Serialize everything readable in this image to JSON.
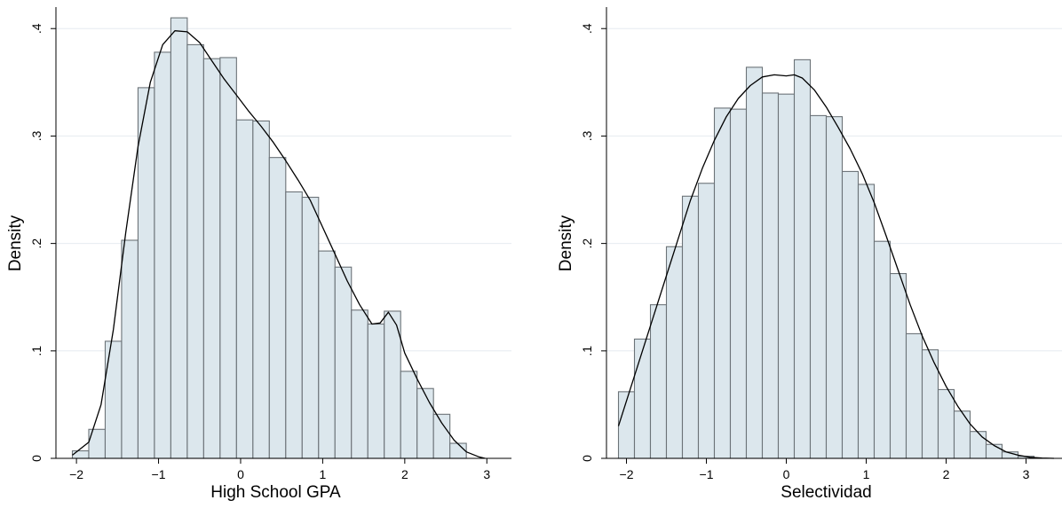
{
  "chart_data": [
    {
      "type": "bar",
      "variant": "histogram-with-density",
      "xlabel": "High School GPA",
      "ylabel": "Density",
      "xlim": [
        -2.25,
        3.3
      ],
      "ylim": [
        0,
        0.42
      ],
      "x_ticks": [
        {
          "value": -2,
          "label": "−2"
        },
        {
          "value": -1,
          "label": "−1"
        },
        {
          "value": 0,
          "label": "0"
        },
        {
          "value": 1,
          "label": "1"
        },
        {
          "value": 2,
          "label": "2"
        },
        {
          "value": 3,
          "label": "3"
        }
      ],
      "y_ticks": [
        {
          "value": 0,
          "label": "0"
        },
        {
          "value": 0.1,
          "label": ".1"
        },
        {
          "value": 0.2,
          "label": ".2"
        },
        {
          "value": 0.3,
          "label": ".3"
        },
        {
          "value": 0.4,
          "label": ".4"
        }
      ],
      "grid": true,
      "bin_start": -2.05,
      "bin_width": 0.2,
      "values": [
        0.007,
        0.027,
        0.109,
        0.203,
        0.345,
        0.378,
        0.41,
        0.385,
        0.372,
        0.373,
        0.315,
        0.314,
        0.28,
        0.248,
        0.243,
        0.193,
        0.178,
        0.138,
        0.125,
        0.137,
        0.081,
        0.065,
        0.041,
        0.014
      ],
      "density_curve": [
        [
          -2.05,
          0.003
        ],
        [
          -1.85,
          0.015
        ],
        [
          -1.7,
          0.05
        ],
        [
          -1.55,
          0.12
        ],
        [
          -1.4,
          0.21
        ],
        [
          -1.25,
          0.29
        ],
        [
          -1.1,
          0.35
        ],
        [
          -0.95,
          0.385
        ],
        [
          -0.8,
          0.398
        ],
        [
          -0.65,
          0.397
        ],
        [
          -0.5,
          0.387
        ],
        [
          -0.35,
          0.37
        ],
        [
          -0.2,
          0.353
        ],
        [
          -0.05,
          0.338
        ],
        [
          0.1,
          0.323
        ],
        [
          0.25,
          0.309
        ],
        [
          0.4,
          0.294
        ],
        [
          0.55,
          0.277
        ],
        [
          0.7,
          0.259
        ],
        [
          0.85,
          0.24
        ],
        [
          1.0,
          0.215
        ],
        [
          1.15,
          0.19
        ],
        [
          1.3,
          0.165
        ],
        [
          1.45,
          0.143
        ],
        [
          1.6,
          0.125
        ],
        [
          1.7,
          0.126
        ],
        [
          1.8,
          0.136
        ],
        [
          1.9,
          0.124
        ],
        [
          2.0,
          0.098
        ],
        [
          2.15,
          0.074
        ],
        [
          2.3,
          0.052
        ],
        [
          2.45,
          0.033
        ],
        [
          2.6,
          0.017
        ],
        [
          2.75,
          0.006
        ],
        [
          2.9,
          0.0015
        ],
        [
          2.98,
          0.0
        ]
      ]
    },
    {
      "type": "bar",
      "variant": "histogram-with-density",
      "xlabel": "Selectividad",
      "ylabel": "Density",
      "xlim": [
        -2.25,
        3.45
      ],
      "ylim": [
        0,
        0.42
      ],
      "x_ticks": [
        {
          "value": -2,
          "label": "−2"
        },
        {
          "value": -1,
          "label": "−1"
        },
        {
          "value": 0,
          "label": "0"
        },
        {
          "value": 1,
          "label": "1"
        },
        {
          "value": 2,
          "label": "2"
        },
        {
          "value": 3,
          "label": "3"
        }
      ],
      "y_ticks": [
        {
          "value": 0,
          "label": "0"
        },
        {
          "value": 0.1,
          "label": ".1"
        },
        {
          "value": 0.2,
          "label": ".2"
        },
        {
          "value": 0.3,
          "label": ".3"
        },
        {
          "value": 0.4,
          "label": ".4"
        }
      ],
      "grid": true,
      "bin_start": -2.1,
      "bin_width": 0.2,
      "values": [
        0.062,
        0.111,
        0.143,
        0.197,
        0.244,
        0.256,
        0.326,
        0.325,
        0.364,
        0.34,
        0.339,
        0.371,
        0.319,
        0.318,
        0.267,
        0.255,
        0.202,
        0.172,
        0.116,
        0.101,
        0.064,
        0.044,
        0.025,
        0.013,
        0.006,
        0.002
      ],
      "density_curve": [
        [
          -2.1,
          0.03
        ],
        [
          -1.95,
          0.065
        ],
        [
          -1.8,
          0.1
        ],
        [
          -1.65,
          0.135
        ],
        [
          -1.5,
          0.17
        ],
        [
          -1.35,
          0.205
        ],
        [
          -1.2,
          0.24
        ],
        [
          -1.05,
          0.27
        ],
        [
          -0.9,
          0.296
        ],
        [
          -0.75,
          0.318
        ],
        [
          -0.6,
          0.335
        ],
        [
          -0.45,
          0.347
        ],
        [
          -0.3,
          0.355
        ],
        [
          -0.15,
          0.357
        ],
        [
          0.0,
          0.356
        ],
        [
          0.1,
          0.357
        ],
        [
          0.2,
          0.354
        ],
        [
          0.35,
          0.343
        ],
        [
          0.5,
          0.327
        ],
        [
          0.65,
          0.308
        ],
        [
          0.8,
          0.288
        ],
        [
          0.95,
          0.265
        ],
        [
          1.1,
          0.238
        ],
        [
          1.25,
          0.207
        ],
        [
          1.4,
          0.175
        ],
        [
          1.55,
          0.143
        ],
        [
          1.7,
          0.114
        ],
        [
          1.85,
          0.089
        ],
        [
          2.0,
          0.067
        ],
        [
          2.15,
          0.048
        ],
        [
          2.3,
          0.032
        ],
        [
          2.45,
          0.02
        ],
        [
          2.6,
          0.012
        ],
        [
          2.75,
          0.006
        ],
        [
          2.9,
          0.003
        ],
        [
          3.05,
          0.001
        ],
        [
          3.2,
          0.0003
        ],
        [
          3.35,
          0.0
        ]
      ]
    }
  ]
}
